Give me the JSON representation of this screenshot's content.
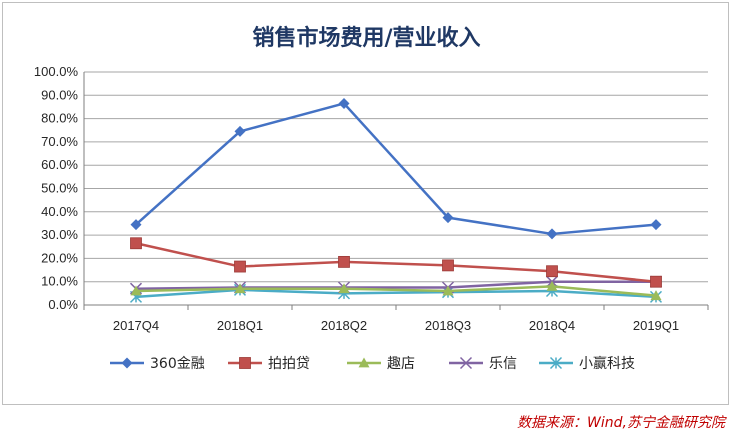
{
  "chart_data": {
    "type": "line",
    "title": "销售市场费用/营业收入",
    "categories": [
      "2017Q4",
      "2018Q1",
      "2018Q2",
      "2018Q3",
      "2018Q4",
      "2019Q1"
    ],
    "ylim": [
      0,
      100
    ],
    "yticks": [
      "0.0%",
      "10.0%",
      "20.0%",
      "30.0%",
      "40.0%",
      "50.0%",
      "60.0%",
      "70.0%",
      "80.0%",
      "90.0%",
      "100.0%"
    ],
    "grid": true,
    "legend_position": "bottom",
    "series": [
      {
        "name": "360金融",
        "values": [
          34.5,
          74.5,
          86.5,
          37.5,
          30.5,
          34.5
        ],
        "color": "#4472c4",
        "marker": "diamond"
      },
      {
        "name": "拍拍贷",
        "values": [
          26.5,
          16.5,
          18.5,
          17.0,
          14.5,
          10.0
        ],
        "color": "#c0504d",
        "marker": "square"
      },
      {
        "name": "趣店",
        "values": [
          6.0,
          7.0,
          7.0,
          6.0,
          8.0,
          4.0
        ],
        "color": "#9bbb59",
        "marker": "triangle"
      },
      {
        "name": "乐信",
        "values": [
          7.0,
          7.5,
          7.5,
          7.5,
          10.0,
          10.0
        ],
        "color": "#8064a2",
        "marker": "x"
      },
      {
        "name": "小赢科技",
        "values": [
          3.5,
          6.5,
          5.0,
          5.5,
          6.0,
          3.5
        ],
        "color": "#4bacc6",
        "marker": "asterisk"
      }
    ]
  },
  "source": "数据来源：Wind,苏宁金融研究院"
}
